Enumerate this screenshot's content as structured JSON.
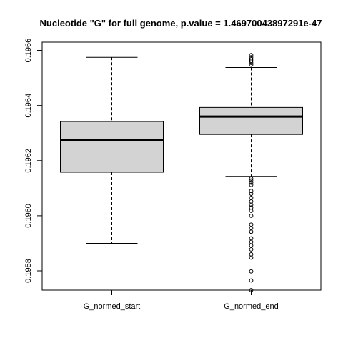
{
  "chart_data": {
    "type": "boxplot",
    "title": "Nucleotide \"G\" for full genome, p.value = 1.46970043897291e-47",
    "xlabel": "",
    "ylabel": "",
    "ylim": [
      0.19573,
      0.19663
    ],
    "y_ticks": [
      "0.1958",
      "0.1960",
      "0.1962",
      "0.1964",
      "0.1966"
    ],
    "y_tick_values": [
      0.1958,
      0.196,
      0.1962,
      0.1964,
      0.1966
    ],
    "categories": [
      "G_normed_start",
      "G_normed_end"
    ],
    "box_fill": "#d3d3d3",
    "boxes": [
      {
        "name": "G_normed_start",
        "whisker_low": 0.1959,
        "q1": 0.196158,
        "median": 0.196274,
        "q3": 0.196342,
        "whisker_high": 0.196575,
        "outliers": []
      },
      {
        "name": "G_normed_end",
        "whisker_low": 0.196143,
        "q1": 0.196295,
        "median": 0.19636,
        "q3": 0.196393,
        "whisker_high": 0.196538,
        "outliers": [
          0.196583,
          0.196575,
          0.196568,
          0.196562,
          0.196555,
          0.196548,
          0.196135,
          0.196128,
          0.19612,
          0.196112,
          0.19609,
          0.19608,
          0.196065,
          0.196052,
          0.19604,
          0.19603,
          0.196018,
          0.196,
          0.195968,
          0.195955,
          0.195942,
          0.195918,
          0.195905,
          0.195892,
          0.195878,
          0.19586,
          0.195848,
          0.195798,
          0.195765,
          0.19573
        ]
      }
    ]
  }
}
